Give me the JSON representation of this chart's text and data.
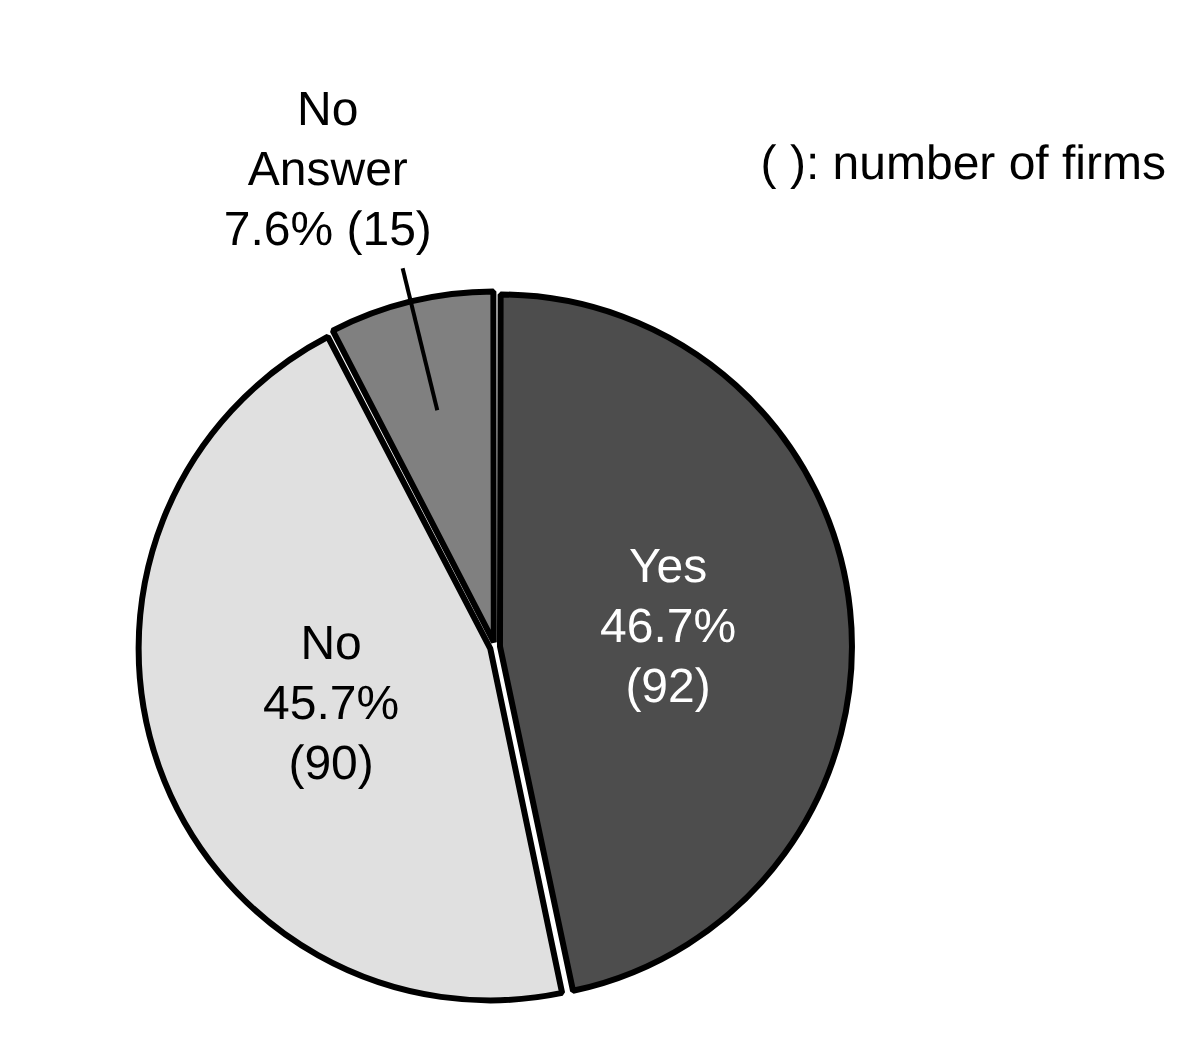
{
  "chart_data": {
    "type": "pie",
    "categories": [
      "Yes",
      "No",
      "No Answer"
    ],
    "values": [
      92,
      90,
      15
    ],
    "colors": [
      "#4d4d4d",
      "#e0e0e0",
      "#808080"
    ],
    "value_labels": [
      "46.7% (92)",
      "45.7% (90)",
      "7.6% (15)"
    ],
    "legend": false,
    "annotations": [
      "( ): number of firms"
    ]
  }
}
